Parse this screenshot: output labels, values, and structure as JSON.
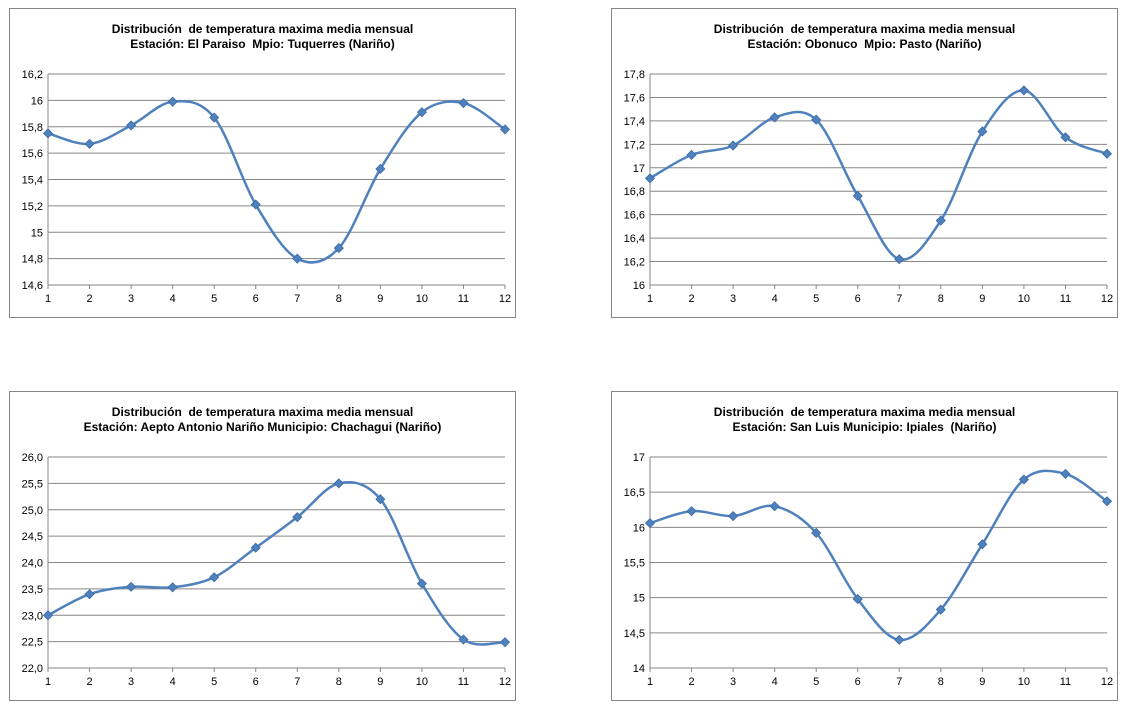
{
  "chart_data": [
    {
      "type": "line",
      "title_line1": "Distribución  de temperatura maxima media mensual",
      "title_line2": "Estación: El Paraiso  Mpio: Tuquerres (Nariño)",
      "categories": [
        "1",
        "2",
        "3",
        "4",
        "5",
        "6",
        "7",
        "8",
        "9",
        "10",
        "11",
        "12"
      ],
      "values": [
        15.75,
        15.67,
        15.81,
        15.99,
        15.87,
        15.21,
        14.8,
        14.88,
        15.48,
        15.91,
        15.98,
        15.78
      ],
      "ylim": [
        14.6,
        16.2
      ],
      "yticks": [
        "14,6",
        "14,8",
        "15",
        "15,2",
        "15,4",
        "15,6",
        "15,8",
        "16",
        "16,2"
      ],
      "grid": true,
      "color": "#4f81bd"
    },
    {
      "type": "line",
      "title_line1": "Distribución  de temperatura maxima media mensual",
      "title_line2": "Estación: Obonuco  Mpio: Pasto (Nariño)",
      "categories": [
        "1",
        "2",
        "3",
        "4",
        "5",
        "6",
        "7",
        "8",
        "9",
        "10",
        "11",
        "12"
      ],
      "values": [
        16.91,
        17.11,
        17.19,
        17.43,
        17.41,
        16.76,
        16.22,
        16.55,
        17.31,
        17.66,
        17.26,
        17.12
      ],
      "ylim": [
        16.0,
        17.8
      ],
      "yticks": [
        "16",
        "16,2",
        "16,4",
        "16,6",
        "16,8",
        "17",
        "17,2",
        "17,4",
        "17,6",
        "17,8"
      ],
      "grid": true,
      "color": "#4f81bd"
    },
    {
      "type": "line",
      "title_line1": "Distribución  de temperatura maxima media mensual",
      "title_line2": "Estación: Aepto Antonio Nariño Municipio: Chachagui (Nariño)",
      "categories": [
        "1",
        "2",
        "3",
        "4",
        "5",
        "6",
        "7",
        "8",
        "9",
        "10",
        "11",
        "12"
      ],
      "values": [
        23.0,
        23.4,
        23.54,
        23.53,
        23.72,
        24.28,
        24.86,
        25.5,
        25.2,
        23.6,
        22.54,
        22.49
      ],
      "ylim": [
        22.0,
        26.0
      ],
      "yticks": [
        "22,0",
        "22,5",
        "23,0",
        "23,5",
        "24,0",
        "24,5",
        "25,0",
        "25,5",
        "26,0"
      ],
      "grid": true,
      "color": "#4f81bd"
    },
    {
      "type": "line",
      "title_line1": "Distribución  de temperatura maxima media mensual",
      "title_line2": "Estación: San Luis Municipio: Ipiales  (Nariño)",
      "categories": [
        "1",
        "2",
        "3",
        "4",
        "5",
        "6",
        "7",
        "8",
        "9",
        "10",
        "11",
        "12"
      ],
      "values": [
        16.06,
        16.23,
        16.16,
        16.3,
        15.92,
        14.98,
        14.4,
        14.83,
        15.76,
        16.68,
        16.76,
        16.37
      ],
      "ylim": [
        14.0,
        17.0
      ],
      "yticks": [
        "14",
        "14,5",
        "15",
        "15,5",
        "16",
        "16,5",
        "17"
      ],
      "grid": true,
      "color": "#4f81bd"
    }
  ]
}
